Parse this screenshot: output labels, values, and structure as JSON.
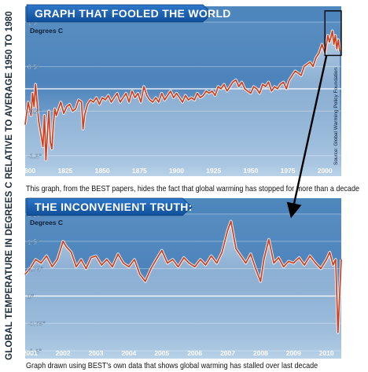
{
  "ylabel": "GLOBAL TEMPERATURE IN DEGREES C RELATIVE TO AVERAGE 1950 TO 1980",
  "chart_data": [
    {
      "type": "line",
      "title": "GRAPH THAT FOOLED THE WORLD",
      "unit_label": "Degrees C",
      "caption": "This graph, from the BEST papers, hides the fact that global warming has stopped for more than a decade",
      "source": "Source: Global Warming Policy Foundation",
      "xlim": [
        1798,
        2011
      ],
      "ylim": [
        -1.75,
        1.5
      ],
      "x_ticks": [
        {
          "value": 1800,
          "label": "1800"
        },
        {
          "value": 1825,
          "label": "1825"
        },
        {
          "value": 1850,
          "label": "1850"
        },
        {
          "value": 1875,
          "label": "1875"
        },
        {
          "value": 1900,
          "label": "1900"
        },
        {
          "value": 1925,
          "label": "1925"
        },
        {
          "value": 1950,
          "label": "1950"
        },
        {
          "value": 1975,
          "label": "1975"
        },
        {
          "value": 2000,
          "label": "2000"
        }
      ],
      "y_ticks": [
        {
          "value": 1.5,
          "label": "1.5°"
        },
        {
          "value": 0.5,
          "label": "0.5°"
        },
        {
          "value": -0.5,
          "label": "-0.5°"
        },
        {
          "value": -1.5,
          "label": "-1.5°"
        }
      ],
      "series": [
        {
          "color": "#d0401c",
          "x": [
            1798,
            1800,
            1802,
            1803,
            1804,
            1805,
            1806,
            1807,
            1808,
            1809,
            1810,
            1811,
            1812,
            1813,
            1814,
            1815,
            1816,
            1817,
            1818,
            1819,
            1820,
            1822,
            1824,
            1826,
            1828,
            1830,
            1832,
            1834,
            1836,
            1837,
            1838,
            1840,
            1842,
            1844,
            1846,
            1848,
            1850,
            1852,
            1854,
            1856,
            1858,
            1860,
            1862,
            1864,
            1866,
            1868,
            1870,
            1872,
            1874,
            1876,
            1878,
            1880,
            1882,
            1884,
            1886,
            1888,
            1890,
            1892,
            1894,
            1896,
            1898,
            1900,
            1902,
            1904,
            1906,
            1908,
            1910,
            1912,
            1914,
            1916,
            1918,
            1920,
            1922,
            1924,
            1926,
            1928,
            1930,
            1932,
            1934,
            1936,
            1938,
            1940,
            1942,
            1944,
            1946,
            1948,
            1950,
            1952,
            1954,
            1956,
            1958,
            1960,
            1962,
            1964,
            1966,
            1968,
            1970,
            1972,
            1974,
            1976,
            1978,
            1980,
            1982,
            1984,
            1986,
            1988,
            1990,
            1992,
            1994,
            1996,
            1998,
            2000,
            2001,
            2002,
            2003,
            2004,
            2005,
            2006,
            2007,
            2008,
            2009,
            2010
          ],
          "y": [
            -0.8,
            -0.3,
            -0.6,
            -0.1,
            -0.4,
            0.1,
            -0.3,
            -0.7,
            -0.9,
            -1.1,
            -1.3,
            -0.6,
            -1.6,
            -1.0,
            -0.5,
            -1.2,
            -1.35,
            -0.8,
            -0.45,
            -0.6,
            -0.5,
            -0.3,
            -0.55,
            -0.4,
            -0.35,
            -0.5,
            -0.45,
            -0.25,
            -0.3,
            -0.9,
            -0.6,
            -0.35,
            -0.25,
            -0.3,
            -0.2,
            -0.35,
            -0.2,
            -0.25,
            -0.15,
            -0.3,
            -0.2,
            -0.1,
            -0.3,
            -0.2,
            -0.1,
            -0.3,
            -0.05,
            -0.2,
            -0.1,
            -0.3,
            0.05,
            -0.15,
            -0.25,
            -0.3,
            -0.2,
            -0.3,
            -0.1,
            -0.25,
            -0.15,
            -0.05,
            -0.2,
            -0.1,
            -0.2,
            -0.3,
            -0.15,
            -0.25,
            -0.2,
            -0.25,
            -0.1,
            -0.2,
            -0.15,
            -0.05,
            -0.1,
            -0.05,
            -0.15,
            0.05,
            0.0,
            0.1,
            -0.05,
            0.05,
            0.15,
            0.2,
            0.05,
            0.15,
            0.0,
            -0.05,
            -0.1,
            0.05,
            0.0,
            -0.1,
            0.1,
            0.05,
            0.15,
            -0.05,
            0.05,
            0.0,
            0.1,
            0.15,
            0.0,
            0.2,
            0.3,
            0.4,
            0.35,
            0.3,
            0.5,
            0.55,
            0.6,
            0.5,
            0.7,
            0.8,
            1.0,
            0.8,
            1.0,
            1.2,
            1.05,
            1.15,
            1.3,
            1.0,
            1.2,
            0.9,
            1.1,
            0.85
          ]
        }
      ]
    },
    {
      "type": "line",
      "title": "THE INCONVENIENT TRUTH:",
      "unit_label": "Degrees C",
      "caption": "Graph drawn using BEST's own data that shows global warming has stalled over last decade",
      "xlim": [
        2000.85,
        2010.45
      ],
      "ylim": [
        -1.5,
        2.25
      ],
      "x_ticks": [
        {
          "value": 2001,
          "label": "2001"
        },
        {
          "value": 2002,
          "label": "2002"
        },
        {
          "value": 2003,
          "label": "2003"
        },
        {
          "value": 2004,
          "label": "2004"
        },
        {
          "value": 2005,
          "label": "2005"
        },
        {
          "value": 2006,
          "label": "2006"
        },
        {
          "value": 2007,
          "label": "2007"
        },
        {
          "value": 2008,
          "label": "2008"
        },
        {
          "value": 2009,
          "label": "2009"
        },
        {
          "value": 2010,
          "label": "2010"
        }
      ],
      "y_ticks": [
        {
          "value": 2.25,
          "label": "2.25°"
        },
        {
          "value": 1.5,
          "label": "1.5°"
        },
        {
          "value": 0.75,
          "label": "0.75°"
        },
        {
          "value": 0,
          "label": "0°"
        },
        {
          "value": -0.75,
          "label": "-0.75°"
        },
        {
          "value": -1.5,
          "label": "-1.5°"
        }
      ],
      "series": [
        {
          "color": "#d0401c",
          "x": [
            2000.85,
            2001.0,
            2001.17,
            2001.33,
            2001.5,
            2001.67,
            2001.83,
            2002.0,
            2002.1,
            2002.25,
            2002.4,
            2002.55,
            2002.7,
            2002.85,
            2003.0,
            2003.17,
            2003.33,
            2003.5,
            2003.67,
            2003.83,
            2004.0,
            2004.17,
            2004.33,
            2004.5,
            2004.67,
            2004.83,
            2005.0,
            2005.17,
            2005.33,
            2005.5,
            2005.67,
            2005.83,
            2006.0,
            2006.17,
            2006.33,
            2006.5,
            2006.67,
            2006.83,
            2007.0,
            2007.1,
            2007.25,
            2007.4,
            2007.55,
            2007.7,
            2007.85,
            2008.0,
            2008.1,
            2008.25,
            2008.4,
            2008.55,
            2008.7,
            2008.85,
            2009.0,
            2009.17,
            2009.33,
            2009.5,
            2009.67,
            2009.83,
            2010.0,
            2010.1,
            2010.2,
            2010.28,
            2010.35,
            2010.45
          ],
          "y": [
            0.6,
            0.75,
            1.0,
            0.9,
            1.1,
            0.8,
            1.0,
            1.5,
            1.35,
            1.2,
            0.8,
            1.0,
            0.75,
            1.05,
            1.1,
            0.85,
            1.0,
            0.8,
            1.15,
            0.9,
            0.8,
            1.0,
            0.6,
            0.4,
            0.75,
            1.0,
            1.25,
            0.9,
            1.0,
            0.8,
            1.05,
            0.9,
            0.8,
            1.0,
            0.85,
            1.1,
            0.9,
            1.2,
            1.8,
            2.05,
            1.3,
            1.1,
            0.9,
            1.15,
            0.75,
            0.4,
            1.0,
            1.55,
            0.9,
            1.05,
            0.8,
            0.95,
            0.9,
            1.05,
            0.85,
            1.1,
            0.9,
            0.75,
            1.0,
            1.2,
            0.85,
            1.0,
            -1.0,
            1.0
          ]
        }
      ]
    }
  ]
}
